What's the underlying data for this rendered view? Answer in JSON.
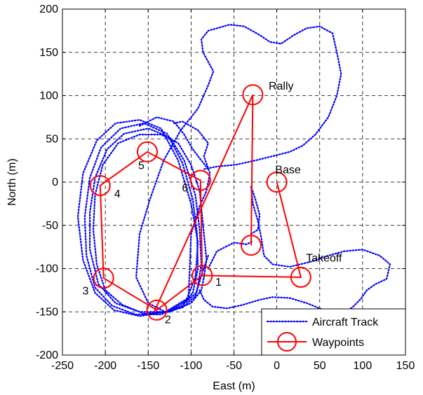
{
  "chart_data": {
    "type": "line",
    "xlabel": "East (m)",
    "ylabel": "North (m)",
    "xlim": [
      -250,
      150
    ],
    "ylim": [
      -200,
      200
    ],
    "xticks": [
      -250,
      -200,
      -150,
      -100,
      -50,
      0,
      50,
      100,
      150
    ],
    "yticks": [
      -200,
      -150,
      -100,
      -50,
      0,
      50,
      100,
      150,
      200
    ],
    "x_tick_labels": [
      "-250",
      "-200",
      "-150",
      "-100",
      "-50",
      "0",
      "50",
      "100",
      "150"
    ],
    "y_tick_labels": [
      "-200",
      "-150",
      "-100",
      "-50",
      "0",
      "50",
      "100",
      "150",
      "200"
    ],
    "grid": true,
    "legend": {
      "placement": "bottom-right",
      "entries": [
        "Aircraft Track",
        "Waypoints"
      ]
    },
    "series": [
      {
        "name": "Aircraft Track",
        "color": "#0000ff",
        "style": "dotted",
        "paths": [
          [
            [
              -85,
              -110
            ],
            [
              -82,
              -90
            ],
            [
              -86,
              -50
            ],
            [
              -90,
              -10
            ],
            [
              -100,
              20
            ],
            [
              -115,
              45
            ],
            [
              -135,
              55
            ],
            [
              -160,
              55
            ],
            [
              -185,
              45
            ],
            [
              -203,
              20
            ],
            [
              -212,
              -15
            ],
            [
              -214,
              -55
            ],
            [
              -210,
              -95
            ],
            [
              -200,
              -125
            ],
            [
              -180,
              -142
            ],
            [
              -155,
              -152
            ],
            [
              -125,
              -150
            ],
            [
              -100,
              -140
            ],
            [
              -88,
              -125
            ],
            [
              -85,
              -110
            ]
          ],
          [
            [
              -92,
              -120
            ],
            [
              -88,
              -95
            ],
            [
              -90,
              -55
            ],
            [
              -95,
              -15
            ],
            [
              -108,
              25
            ],
            [
              -125,
              52
            ],
            [
              -150,
              62
            ],
            [
              -178,
              56
            ],
            [
              -198,
              38
            ],
            [
              -212,
              5
            ],
            [
              -218,
              -35
            ],
            [
              -218,
              -78
            ],
            [
              -208,
              -118
            ],
            [
              -188,
              -140
            ],
            [
              -160,
              -150
            ],
            [
              -130,
              -150
            ],
            [
              -105,
              -138
            ],
            [
              -94,
              -128
            ],
            [
              -92,
              -120
            ]
          ],
          [
            [
              -98,
              -128
            ],
            [
              -92,
              -100
            ],
            [
              -93,
              -60
            ],
            [
              -98,
              -20
            ],
            [
              -110,
              22
            ],
            [
              -128,
              56
            ],
            [
              -155,
              68
            ],
            [
              -182,
              62
            ],
            [
              -205,
              40
            ],
            [
              -218,
              5
            ],
            [
              -224,
              -40
            ],
            [
              -222,
              -85
            ],
            [
              -212,
              -122
            ],
            [
              -192,
              -143
            ],
            [
              -165,
              -153
            ],
            [
              -135,
              -153
            ],
            [
              -110,
              -143
            ],
            [
              -98,
              -128
            ]
          ],
          [
            [
              -105,
              -135
            ],
            [
              -95,
              -110
            ],
            [
              -92,
              -70
            ],
            [
              -100,
              -25
            ],
            [
              -115,
              25
            ],
            [
              -135,
              62
            ],
            [
              -160,
              72
            ],
            [
              -188,
              68
            ],
            [
              -210,
              48
            ],
            [
              -226,
              10
            ],
            [
              -232,
              -40
            ],
            [
              -226,
              -90
            ],
            [
              -212,
              -128
            ],
            [
              -190,
              -148
            ],
            [
              -160,
              -155
            ],
            [
              -130,
              -150
            ],
            [
              -105,
              -135
            ]
          ],
          [
            [
              -140,
              -150
            ],
            [
              -125,
              -150
            ],
            [
              -103,
              -135
            ],
            [
              -100,
              -60
            ],
            [
              -90,
              -28
            ],
            [
              -82,
              -10
            ],
            [
              -78,
              10
            ],
            [
              -85,
              30
            ],
            [
              -80,
              45
            ],
            [
              -92,
              60
            ],
            [
              -110,
              70
            ],
            [
              -120,
              68
            ]
          ],
          [
            [
              -80,
              -85
            ],
            [
              -88,
              -108
            ],
            [
              -95,
              -132
            ],
            [
              -110,
              -145
            ],
            [
              -130,
              -150
            ],
            [
              -150,
              -140
            ],
            [
              -164,
              -110
            ],
            [
              -160,
              -60
            ],
            [
              -148,
              -20
            ],
            [
              -132,
              25
            ],
            [
              -112,
              60
            ],
            [
              -92,
              85
            ],
            [
              -80,
              112
            ],
            [
              -74,
              128
            ],
            [
              -86,
              150
            ],
            [
              -88,
              165
            ],
            [
              -80,
              175
            ],
            [
              -55,
              182
            ],
            [
              -38,
              180
            ],
            [
              -20,
              170
            ],
            [
              -8,
              162
            ],
            [
              5,
              160
            ],
            [
              20,
              170
            ],
            [
              35,
              178
            ],
            [
              50,
              180
            ],
            [
              65,
              172
            ],
            [
              70,
              150
            ],
            [
              75,
              125
            ],
            [
              70,
              100
            ],
            [
              60,
              75
            ],
            [
              45,
              55
            ],
            [
              30,
              42
            ],
            [
              15,
              35
            ],
            [
              -5,
              30
            ],
            [
              -25,
              25
            ],
            [
              -48,
              20
            ],
            [
              -70,
              18
            ],
            [
              -85,
              15
            ]
          ],
          [
            [
              -160,
              65
            ],
            [
              -140,
              75
            ],
            [
              -120,
              70
            ],
            [
              -108,
              55
            ],
            [
              -98,
              38
            ],
            [
              -88,
              25
            ],
            [
              -80,
              15
            ]
          ],
          [
            [
              -30,
              -60
            ],
            [
              -22,
              -55
            ],
            [
              -20,
              -38
            ],
            [
              -25,
              -20
            ],
            [
              -30,
              -5
            ],
            [
              -28,
              -25
            ],
            [
              -22,
              -45
            ],
            [
              -18,
              -65
            ],
            [
              -15,
              -85
            ],
            [
              -5,
              -95
            ],
            [
              15,
              -98
            ],
            [
              40,
              -92
            ],
            [
              60,
              -85
            ],
            [
              78,
              -80
            ],
            [
              100,
              -78
            ],
            [
              120,
              -85
            ],
            [
              132,
              -95
            ],
            [
              128,
              -112
            ],
            [
              115,
              -118
            ],
            [
              105,
              -125
            ],
            [
              98,
              -135
            ],
            [
              88,
              -145
            ],
            [
              75,
              -152
            ],
            [
              55,
              -148
            ],
            [
              35,
              -140
            ],
            [
              15,
              -134
            ],
            [
              -5,
              -133
            ],
            [
              -20,
              -136
            ],
            [
              -40,
              -142
            ],
            [
              -58,
              -146
            ],
            [
              -75,
              -144
            ],
            [
              -85,
              -136
            ],
            [
              -90,
              -125
            ]
          ],
          [
            [
              -80,
              -100
            ],
            [
              -70,
              -80
            ],
            [
              -50,
              -70
            ],
            [
              -35,
              -72
            ],
            [
              -28,
              -68
            ]
          ]
        ]
      },
      {
        "name": "Waypoints",
        "color": "#ff0000",
        "style": "solid",
        "points": [
          [
            -87,
            -108
          ],
          [
            -140,
            -148
          ],
          [
            -202,
            -111
          ],
          [
            -206,
            -4
          ],
          [
            -151,
            35
          ],
          [
            -89,
            2
          ],
          [
            -143,
            -150
          ],
          [
            -28,
            101
          ],
          [
            -30,
            -73
          ],
          [
            -28,
            -20
          ],
          [
            -28,
            101
          ],
          [
            -87,
            -108
          ],
          [
            28,
            -110
          ],
          [
            0,
            0
          ]
        ],
        "path_order": [
          [
            [
              -87,
              -108
            ],
            [
              -140,
              -148
            ],
            [
              -202,
              -111
            ],
            [
              -206,
              -4
            ],
            [
              -151,
              35
            ],
            [
              -89,
              2
            ],
            [
              -87,
              -108
            ]
          ],
          [
            [
              -87,
              -108
            ],
            [
              28,
              -110
            ],
            [
              0,
              0
            ]
          ],
          [
            [
              -143,
              -150
            ],
            [
              -28,
              101
            ],
            [
              -30,
              -73
            ]
          ]
        ],
        "markers": [
          {
            "label": "1",
            "x": -87,
            "y": -108
          },
          {
            "label": "2",
            "x": -140,
            "y": -148
          },
          {
            "label": "3",
            "x": -202,
            "y": -111
          },
          {
            "label": "4",
            "x": -206,
            "y": -4
          },
          {
            "label": "5",
            "x": -151,
            "y": 35
          },
          {
            "label": "6",
            "x": -89,
            "y": 2
          },
          {
            "label": "Rally",
            "x": -28,
            "y": 101
          },
          {
            "label": "Base",
            "x": 0,
            "y": 0
          },
          {
            "label": "Takeoff",
            "x": 28,
            "y": -110
          },
          {
            "label": "",
            "x": -30,
            "y": -73
          }
        ]
      }
    ],
    "annotations": [
      {
        "text": "1",
        "x": -68,
        "y": -120
      },
      {
        "text": "2",
        "x": -127,
        "y": -163
      },
      {
        "text": "3",
        "x": -223,
        "y": -130
      },
      {
        "text": "4",
        "x": -186,
        "y": -18
      },
      {
        "text": "5",
        "x": -158,
        "y": 15
      },
      {
        "text": "6",
        "x": -107,
        "y": -11
      },
      {
        "text": "Rally",
        "x": 5,
        "y": 107
      },
      {
        "text": "Base",
        "x": 13,
        "y": 10
      },
      {
        "text": "Takeoff",
        "x": 55,
        "y": -92
      }
    ]
  }
}
